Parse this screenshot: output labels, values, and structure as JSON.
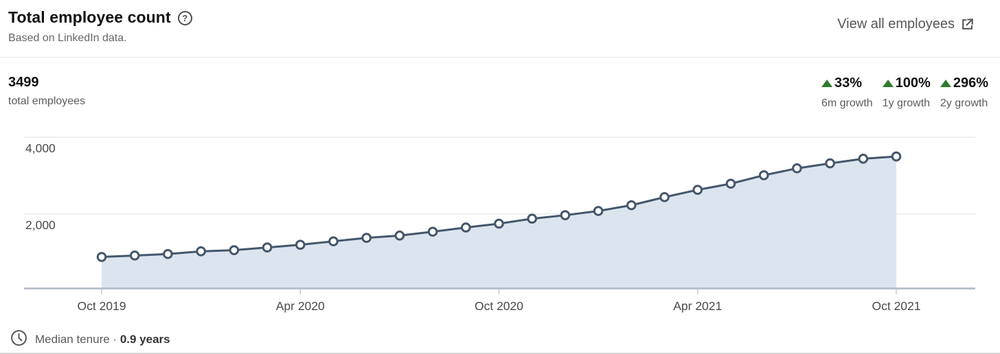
{
  "header": {
    "title": "Total employee count",
    "subtitle": "Based on LinkedIn data.",
    "help_icon": "help-circle-icon",
    "help_glyph": "?",
    "view_all_label": "View all employees",
    "view_all_icon": "external-link-icon"
  },
  "summary": {
    "total_value": "3499",
    "total_label": "total employees",
    "growth_stats": [
      {
        "value": "33%",
        "label": "6m growth",
        "direction": "up"
      },
      {
        "value": "100%",
        "label": "1y growth",
        "direction": "up"
      },
      {
        "value": "296%",
        "label": "2y growth",
        "direction": "up"
      }
    ]
  },
  "chart_data": {
    "type": "area",
    "title": "Total employee count",
    "x": [
      "Oct 2019",
      "Nov 2019",
      "Dec 2019",
      "Jan 2020",
      "Feb 2020",
      "Mar 2020",
      "Apr 2020",
      "May 2020",
      "Jun 2020",
      "Jul 2020",
      "Aug 2020",
      "Sep 2020",
      "Oct 2020",
      "Nov 2020",
      "Dec 2020",
      "Jan 2021",
      "Feb 2021",
      "Mar 2021",
      "Apr 2021",
      "May 2021",
      "Jun 2021",
      "Jul 2021",
      "Aug 2021",
      "Sep 2021",
      "Oct 2021"
    ],
    "values": [
      883,
      920,
      960,
      1030,
      1060,
      1130,
      1200,
      1290,
      1380,
      1440,
      1540,
      1650,
      1750,
      1880,
      1970,
      2080,
      2230,
      2440,
      2630,
      2790,
      3010,
      3190,
      3320,
      3440,
      3499
    ],
    "x_tick_labels": [
      "Oct 2019",
      "Apr 2020",
      "Oct 2020",
      "Apr 2021",
      "Oct 2021"
    ],
    "y_ticks": [
      2000,
      4000
    ],
    "y_tick_labels": [
      "2,000",
      "4,000"
    ],
    "ylim": [
      0,
      4000
    ],
    "xlabel": "",
    "ylabel": "",
    "grid": "horizontal",
    "legend": "none",
    "markers": "circle"
  },
  "footer": {
    "clock_icon": "clock-icon",
    "label": "Median tenure ·",
    "value": "0.9 years"
  },
  "colors": {
    "line": "#44566b",
    "area_fill": "#dce4ef",
    "marker_fill": "#ffffff",
    "growth_green": "#2f7b2f",
    "gridline": "#e5e5e5",
    "axis_line": "#b6bdc9",
    "tick": "#c9c9c9",
    "axis_text": "#4a4a4a"
  }
}
